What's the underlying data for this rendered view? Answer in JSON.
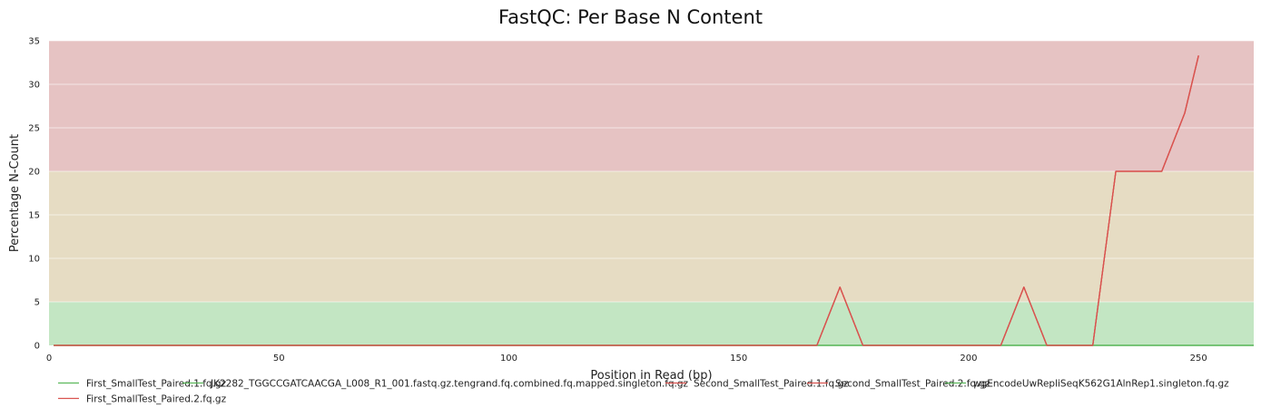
{
  "chart_data": {
    "type": "line",
    "title": "FastQC: Per Base N Content",
    "xlabel": "Position in Read (bp)",
    "ylabel": "Percentage N-Count",
    "xlim": [
      0,
      262
    ],
    "ylim": [
      0,
      35
    ],
    "xticks": [
      0,
      50,
      100,
      150,
      200,
      250
    ],
    "yticks": [
      0,
      5,
      10,
      15,
      20,
      25,
      30,
      35
    ],
    "grid": true,
    "legend_position": "bottom",
    "bands": [
      {
        "from": 0,
        "to": 5,
        "color": "#c3e6c3"
      },
      {
        "from": 5,
        "to": 20,
        "color": "#e6dcc3"
      },
      {
        "from": 20,
        "to": 35,
        "color": "#e6c3c3"
      }
    ],
    "series": [
      {
        "name": "First_SmallTest_Paired.1.fq.gz",
        "color": "#5cb85c",
        "x": [
          1,
          262
        ],
        "y": [
          0,
          0
        ]
      },
      {
        "name": "JK2282_TGGCCGATCAACGA_L008_R1_001.fastq.gz.tengrand.fq.combined.fq.mapped.singleton.fq.gz",
        "color": "#5cb85c",
        "x": [
          1,
          262
        ],
        "y": [
          0,
          0
        ]
      },
      {
        "name": "Second_SmallTest_Paired.1.fq.gz",
        "color": "#d9534f",
        "x": [
          1,
          167,
          172,
          177,
          207,
          212,
          217,
          227,
          232,
          237,
          242,
          247,
          250
        ],
        "y": [
          0,
          0,
          6.7,
          0,
          0,
          6.7,
          0,
          0,
          20,
          20,
          20,
          26.7,
          33.3
        ]
      },
      {
        "name": "Second_SmallTest_Paired.2.fq.gz",
        "color": "#d9534f",
        "x": [
          1,
          167,
          172,
          177,
          207,
          212,
          217,
          227,
          232,
          237,
          242,
          247,
          250
        ],
        "y": [
          0,
          0,
          6.7,
          0,
          0,
          6.7,
          0,
          0,
          20,
          20,
          20,
          26.7,
          33.3
        ]
      },
      {
        "name": "wgEncodeUwRepliSeqK562G1AlnRep1.singleton.fq.gz",
        "color": "#5cb85c",
        "x": [
          1,
          262
        ],
        "y": [
          0,
          0
        ]
      },
      {
        "name": "First_SmallTest_Paired.2.fq.gz",
        "color": "#d9534f",
        "x": [
          1,
          167,
          172,
          177,
          207,
          212,
          217,
          227,
          232,
          237,
          242,
          247,
          250
        ],
        "y": [
          0,
          0,
          6.7,
          0,
          0,
          6.7,
          0,
          0,
          20,
          20,
          20,
          26.7,
          33.3
        ]
      }
    ]
  }
}
